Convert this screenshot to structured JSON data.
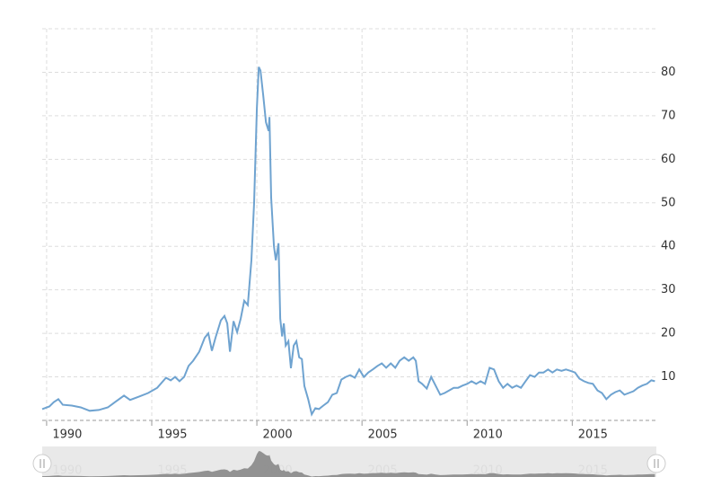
{
  "chart_data": {
    "type": "line",
    "x": [
      1989.79,
      1990.13,
      1990.34,
      1990.56,
      1990.77,
      1991.2,
      1991.62,
      1992.05,
      1992.48,
      1992.91,
      1993.25,
      1993.68,
      1993.97,
      1994.4,
      1994.83,
      1995.26,
      1995.68,
      1995.9,
      1996.11,
      1996.32,
      1996.54,
      1996.75,
      1996.97,
      1997.26,
      1997.52,
      1997.69,
      1997.86,
      1998.03,
      1998.29,
      1998.46,
      1998.59,
      1998.72,
      1998.89,
      1999.06,
      1999.23,
      1999.4,
      1999.57,
      1999.74,
      1999.87,
      2000.0,
      2000.09,
      2000.17,
      2000.3,
      2000.43,
      2000.56,
      2000.6,
      2000.68,
      2000.81,
      2000.9,
      2001.03,
      2001.11,
      2001.2,
      2001.28,
      2001.37,
      2001.5,
      2001.62,
      2001.75,
      2001.88,
      2002.01,
      2002.14,
      2002.26,
      2002.44,
      2002.61,
      2002.78,
      2002.95,
      2003.16,
      2003.38,
      2003.59,
      2003.8,
      2004.02,
      2004.23,
      2004.44,
      2004.66,
      2004.87,
      2005.09,
      2005.3,
      2005.51,
      2005.73,
      2005.94,
      2006.15,
      2006.37,
      2006.58,
      2006.79,
      2007.01,
      2007.22,
      2007.44,
      2007.56,
      2007.69,
      2007.86,
      2008.08,
      2008.29,
      2008.5,
      2008.72,
      2008.93,
      2009.15,
      2009.36,
      2009.57,
      2009.79,
      2010.0,
      2010.21,
      2010.43,
      2010.64,
      2010.85,
      2011.07,
      2011.28,
      2011.5,
      2011.71,
      2011.92,
      2012.14,
      2012.35,
      2012.56,
      2012.78,
      2012.99,
      2013.21,
      2013.42,
      2013.63,
      2013.85,
      2014.06,
      2014.27,
      2014.49,
      2014.7,
      2014.91,
      2015.13,
      2015.34,
      2015.56,
      2015.77,
      2015.98,
      2016.2,
      2016.41,
      2016.62,
      2016.84,
      2017.05,
      2017.26,
      2017.48,
      2017.69,
      2017.91,
      2018.12,
      2018.33,
      2018.55,
      2018.76,
      2018.93
    ],
    "values": [
      2.6,
      3.2,
      4.2,
      4.9,
      3.6,
      3.4,
      3.0,
      2.2,
      2.4,
      3.0,
      4.2,
      5.7,
      4.7,
      5.5,
      6.3,
      7.5,
      9.8,
      9.2,
      10,
      9,
      10,
      12.5,
      13.7,
      15.8,
      19,
      20,
      16,
      19,
      23,
      24,
      22.3,
      15.8,
      22.8,
      20.3,
      23.4,
      27.5,
      26.5,
      36.8,
      50,
      71.8,
      81.2,
      80.4,
      74.8,
      68.5,
      66.5,
      69.7,
      51.2,
      40,
      36.8,
      40.7,
      23.4,
      19.3,
      22.3,
      17.2,
      18.2,
      12,
      17.2,
      18.2,
      14.5,
      14.1,
      7.9,
      4.9,
      1.4,
      2.8,
      2.6,
      3.4,
      4.2,
      5.9,
      6.3,
      9.4,
      10,
      10.4,
      9.8,
      11.7,
      10,
      11,
      11.7,
      12.5,
      13.1,
      12.1,
      13.1,
      12.1,
      13.7,
      14.5,
      13.7,
      14.5,
      13.7,
      9,
      8.4,
      7.3,
      10,
      8,
      5.9,
      6.3,
      6.9,
      7.5,
      7.5,
      8,
      8.4,
      9,
      8.4,
      9,
      8.4,
      12.1,
      11.7,
      9,
      7.5,
      8.4,
      7.5,
      8,
      7.5,
      9,
      10.4,
      10,
      11,
      11,
      11.7,
      11,
      11.7,
      11.4,
      11.7,
      11.4,
      11,
      9.6,
      9,
      8.6,
      8.4,
      6.9,
      6.3,
      4.9,
      5.9,
      6.5,
      6.9,
      5.9,
      6.3,
      6.7,
      7.5,
      8,
      8.4,
      9.2,
      9
    ],
    "color": "#6fa3d0",
    "xlim": [
      1989.79,
      2019.0
    ],
    "xticks": [
      1990,
      1995,
      2000,
      2005,
      2010,
      2015
    ],
    "ylim": [
      0,
      90
    ],
    "yticks": [
      10,
      20,
      30,
      40,
      50,
      60,
      70,
      80
    ],
    "grid": true
  }
}
